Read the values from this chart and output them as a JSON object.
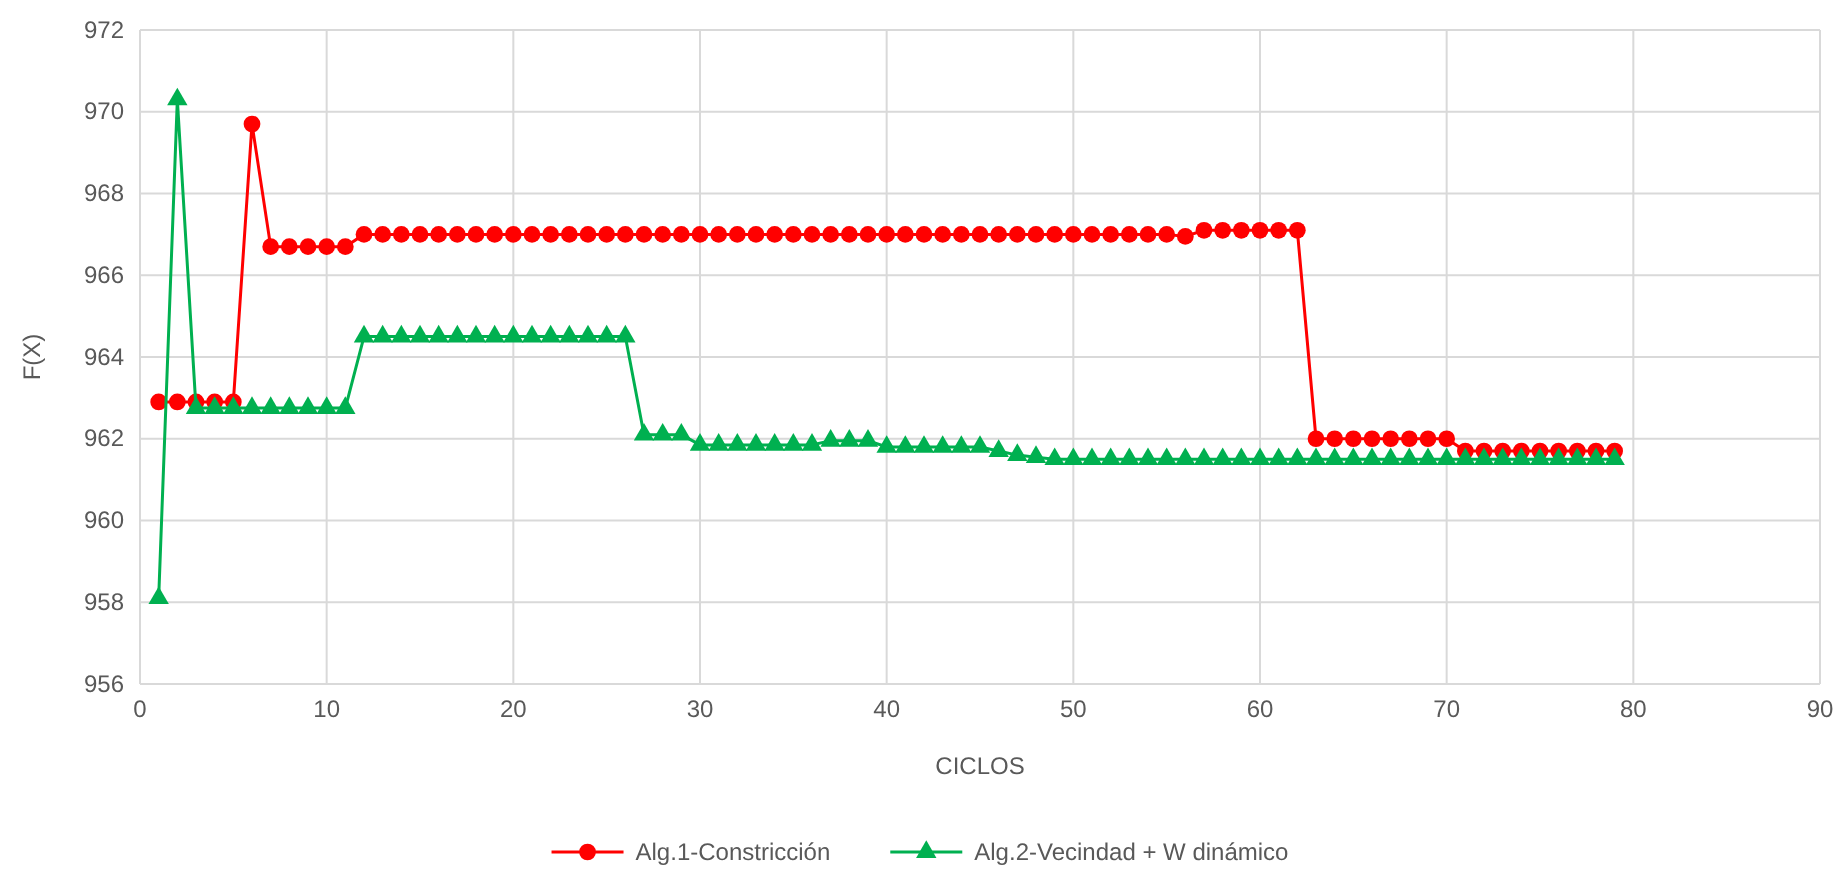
{
  "chart_data": {
    "type": "line",
    "xlabel": "CICLOS",
    "ylabel": "F(X)",
    "x": [
      1,
      2,
      3,
      4,
      5,
      6,
      7,
      8,
      9,
      10,
      11,
      12,
      13,
      14,
      15,
      16,
      17,
      18,
      19,
      20,
      21,
      22,
      23,
      24,
      25,
      26,
      27,
      28,
      29,
      30,
      31,
      32,
      33,
      34,
      35,
      36,
      37,
      38,
      39,
      40,
      41,
      42,
      43,
      44,
      45,
      46,
      47,
      48,
      49,
      50,
      51,
      52,
      53,
      54,
      55,
      56,
      57,
      58,
      59,
      60,
      61,
      62,
      63,
      64,
      65,
      66,
      67,
      68,
      69,
      70,
      71,
      72,
      73,
      74,
      75,
      76,
      77,
      78,
      79
    ],
    "series": [
      {
        "name": "Alg.1-Constricción",
        "color": "#ff0000",
        "marker": "circle",
        "values": [
          962.9,
          962.9,
          962.9,
          962.9,
          962.9,
          969.7,
          966.7,
          966.7,
          966.7,
          966.7,
          966.7,
          967.0,
          967.0,
          967.0,
          967.0,
          967.0,
          967.0,
          967.0,
          967.0,
          967.0,
          967.0,
          967.0,
          967.0,
          967.0,
          967.0,
          967.0,
          967.0,
          967.0,
          967.0,
          967.0,
          967.0,
          967.0,
          967.0,
          967.0,
          967.0,
          967.0,
          967.0,
          967.0,
          967.0,
          967.0,
          967.0,
          967.0,
          967.0,
          967.0,
          967.0,
          967.0,
          967.0,
          967.0,
          967.0,
          967.0,
          967.0,
          967.0,
          967.0,
          967.0,
          967.0,
          966.95,
          967.1,
          967.1,
          967.1,
          967.1,
          967.1,
          967.1,
          962.0,
          962.0,
          962.0,
          962.0,
          962.0,
          962.0,
          962.0,
          962.0,
          961.7,
          961.7,
          961.7,
          961.7,
          961.7,
          961.7,
          961.7,
          961.7,
          961.7
        ]
      },
      {
        "name": "Alg.2-Vecindad + W dinámico",
        "color": "#00b050",
        "marker": "triangle",
        "values": [
          958.1,
          970.3,
          962.75,
          962.75,
          962.75,
          962.75,
          962.75,
          962.75,
          962.75,
          962.75,
          962.75,
          964.5,
          964.5,
          964.5,
          964.5,
          964.5,
          964.5,
          964.5,
          964.5,
          964.5,
          964.5,
          964.5,
          964.5,
          964.5,
          964.5,
          964.5,
          962.1,
          962.1,
          962.1,
          961.85,
          961.85,
          961.85,
          961.85,
          961.85,
          961.85,
          961.85,
          961.95,
          961.95,
          961.95,
          961.8,
          961.8,
          961.8,
          961.8,
          961.8,
          961.8,
          961.7,
          961.6,
          961.55,
          961.5,
          961.5,
          961.5,
          961.5,
          961.5,
          961.5,
          961.5,
          961.5,
          961.5,
          961.5,
          961.5,
          961.5,
          961.5,
          961.5,
          961.5,
          961.5,
          961.5,
          961.5,
          961.5,
          961.5,
          961.5,
          961.5,
          961.5,
          961.5,
          961.5,
          961.5,
          961.5,
          961.5,
          961.5,
          961.5,
          961.5
        ]
      }
    ],
    "xlim": [
      0,
      90
    ],
    "xticks": [
      0,
      10,
      20,
      30,
      40,
      50,
      60,
      70,
      80,
      90
    ],
    "ylim": [
      956,
      972
    ],
    "yticks": [
      956,
      958,
      960,
      962,
      964,
      966,
      968,
      970,
      972
    ],
    "grid": true,
    "legend": "bottom",
    "line_style": "solid"
  }
}
